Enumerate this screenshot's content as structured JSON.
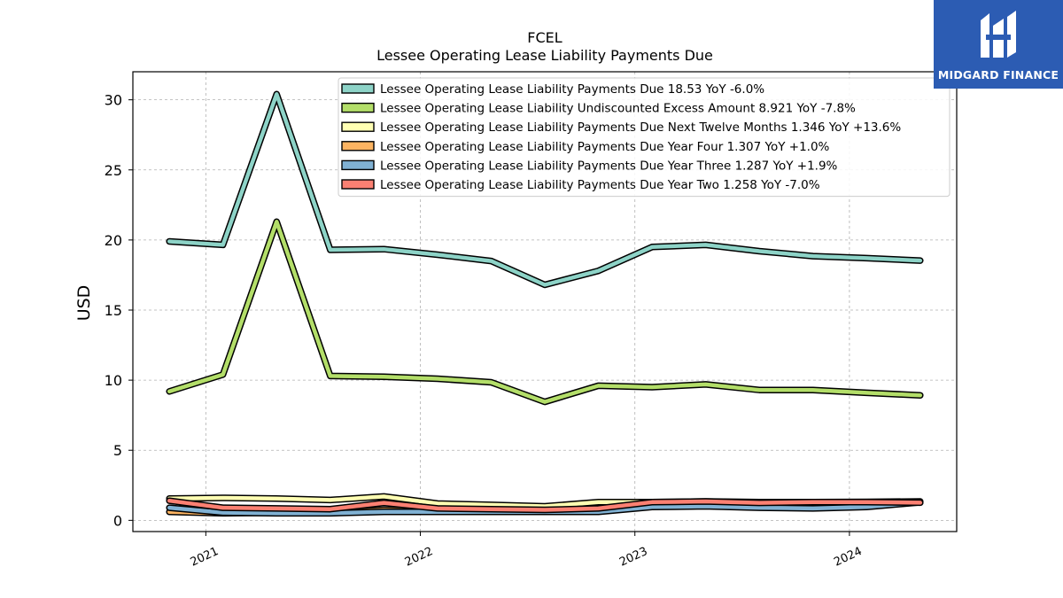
{
  "logo": {
    "text": "MIDGARD FINANCE",
    "background": "#2c5cb3",
    "icon": "midgard-logo-icon"
  },
  "chart_data": {
    "type": "line",
    "title": "FCEL",
    "subtitle": "Lessee Operating Lease Liability Payments Due",
    "xlabel": "",
    "ylabel": "USD",
    "ylim": [
      -0.8,
      32
    ],
    "yticks": [
      0,
      5,
      10,
      15,
      20,
      25,
      30
    ],
    "xlim": [
      2020.66,
      2024.5
    ],
    "xticks": [
      {
        "value": 2021,
        "label": "2021"
      },
      {
        "value": 2022,
        "label": "2022"
      },
      {
        "value": 2023,
        "label": "2023"
      },
      {
        "value": 2024,
        "label": "2024"
      }
    ],
    "grid": true,
    "legend_position": "top-right",
    "x": [
      2020.83,
      2021.08,
      2021.33,
      2021.58,
      2021.83,
      2022.08,
      2022.33,
      2022.58,
      2022.83,
      2023.08,
      2023.33,
      2023.58,
      2023.83,
      2024.08,
      2024.33
    ],
    "series": [
      {
        "name": "Lessee Operating Lease Liability Payments Due",
        "legend": "Lessee Operating Lease Liability Payments Due  18.53 YoY -6.0%",
        "color": "#8dd3c7",
        "values": [
          19.9,
          19.65,
          30.4,
          19.3,
          19.35,
          18.95,
          18.5,
          16.8,
          17.8,
          19.5,
          19.65,
          19.2,
          18.85,
          18.7,
          18.53
        ]
      },
      {
        "name": "Lessee Operating Lease Liability Undiscounted Excess Amount",
        "legend": "Lessee Operating Lease Liability Undiscounted Excess Amount  8.921 YoY -7.8%",
        "color": "#b3de69",
        "values": [
          9.2,
          10.4,
          21.3,
          10.3,
          10.25,
          10.1,
          9.85,
          8.45,
          9.6,
          9.5,
          9.7,
          9.3,
          9.3,
          9.1,
          8.92
        ]
      },
      {
        "name": "Lessee Operating Lease Liability Payments Due Next Twelve Months",
        "legend": "Lessee Operating Lease Liability Payments Due Next Twelve Months  1.346 YoY +13.6%",
        "color": "#ffffb3",
        "values": [
          1.55,
          1.6,
          1.55,
          1.45,
          1.7,
          1.2,
          1.1,
          1.0,
          1.3,
          1.3,
          1.35,
          1.3,
          1.3,
          1.32,
          1.346
        ]
      },
      {
        "name": "Lessee Operating Lease Liability Payments Due Year Four",
        "legend": "Lessee Operating Lease Liability Payments Due Year Four  1.307 YoY +1.0%",
        "color": "#fdb462",
        "values": [
          0.6,
          0.5,
          0.55,
          0.55,
          0.75,
          0.65,
          0.65,
          0.6,
          0.7,
          1.2,
          1.3,
          1.3,
          1.3,
          1.3,
          1.307
        ]
      },
      {
        "name": "Lessee Operating Lease Liability Payments Due Year Three",
        "legend": "Lessee Operating Lease Liability Payments Due Year Three  1.287 YoY +1.9%",
        "color": "#80b1d3",
        "values": [
          0.9,
          0.55,
          0.5,
          0.5,
          0.6,
          0.6,
          0.6,
          0.6,
          0.6,
          0.95,
          1.0,
          0.9,
          0.85,
          0.95,
          1.287
        ]
      },
      {
        "name": "Lessee Operating Lease Liability Payments Due Year Two",
        "legend": "Lessee Operating Lease Liability Payments Due Year Two  1.258 YoY -7.0%",
        "color": "#fb8072",
        "values": [
          1.4,
          0.9,
          0.85,
          0.8,
          1.25,
          0.85,
          0.8,
          0.75,
          0.85,
          1.3,
          1.35,
          1.25,
          1.3,
          1.3,
          1.258
        ]
      }
    ]
  }
}
